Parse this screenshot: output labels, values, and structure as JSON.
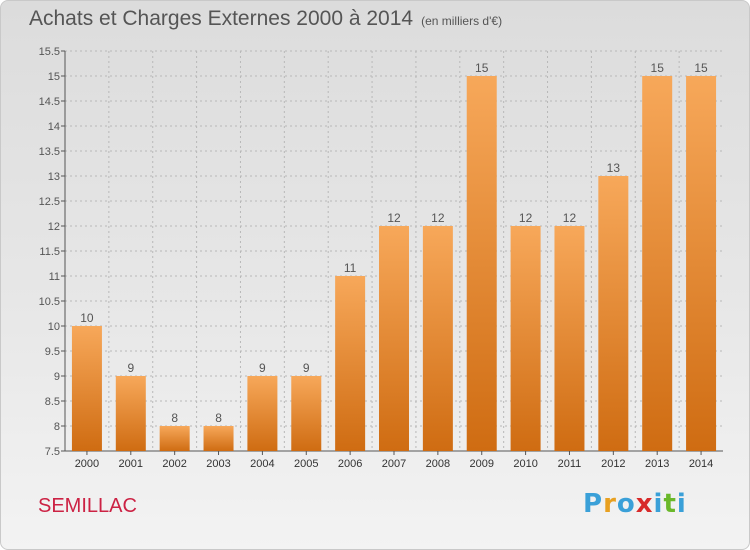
{
  "title": "Achats et Charges Externes 2000 à 2014",
  "unit": "(en milliers d'€)",
  "place": "SEMILLAC",
  "brand": [
    "P",
    "r",
    "o",
    "x",
    "i",
    "t",
    "i"
  ],
  "brand_colors": [
    "#3aa0d8",
    "#e8a020",
    "#3aa0d8",
    "#d82a2a",
    "#3aa0d8",
    "#6ab82a",
    "#3aa0d8"
  ],
  "colors": {
    "bar_light": "#f7a85a",
    "bar_dark": "#cf6c12",
    "axis": "#555555",
    "grid": "#b8b8b8"
  },
  "chart_data": {
    "type": "bar",
    "title": "Achats et Charges Externes 2000 à 2014",
    "categories": [
      "2000",
      "2001",
      "2002",
      "2003",
      "2004",
      "2005",
      "2006",
      "2007",
      "2008",
      "2009",
      "2010",
      "2011",
      "2012",
      "2013",
      "2014"
    ],
    "values": [
      10,
      9,
      8,
      8,
      9,
      9,
      11,
      12,
      12,
      15,
      12,
      12,
      13,
      15,
      15
    ],
    "ylim": [
      7.5,
      15.5
    ],
    "yticks": [
      "7.5",
      "8",
      "8.5",
      "9",
      "9.5",
      "10",
      "10.5",
      "11",
      "11.5",
      "12",
      "12.5",
      "13",
      "13.5",
      "14",
      "14.5",
      "15",
      "15.5"
    ],
    "grid": true
  }
}
